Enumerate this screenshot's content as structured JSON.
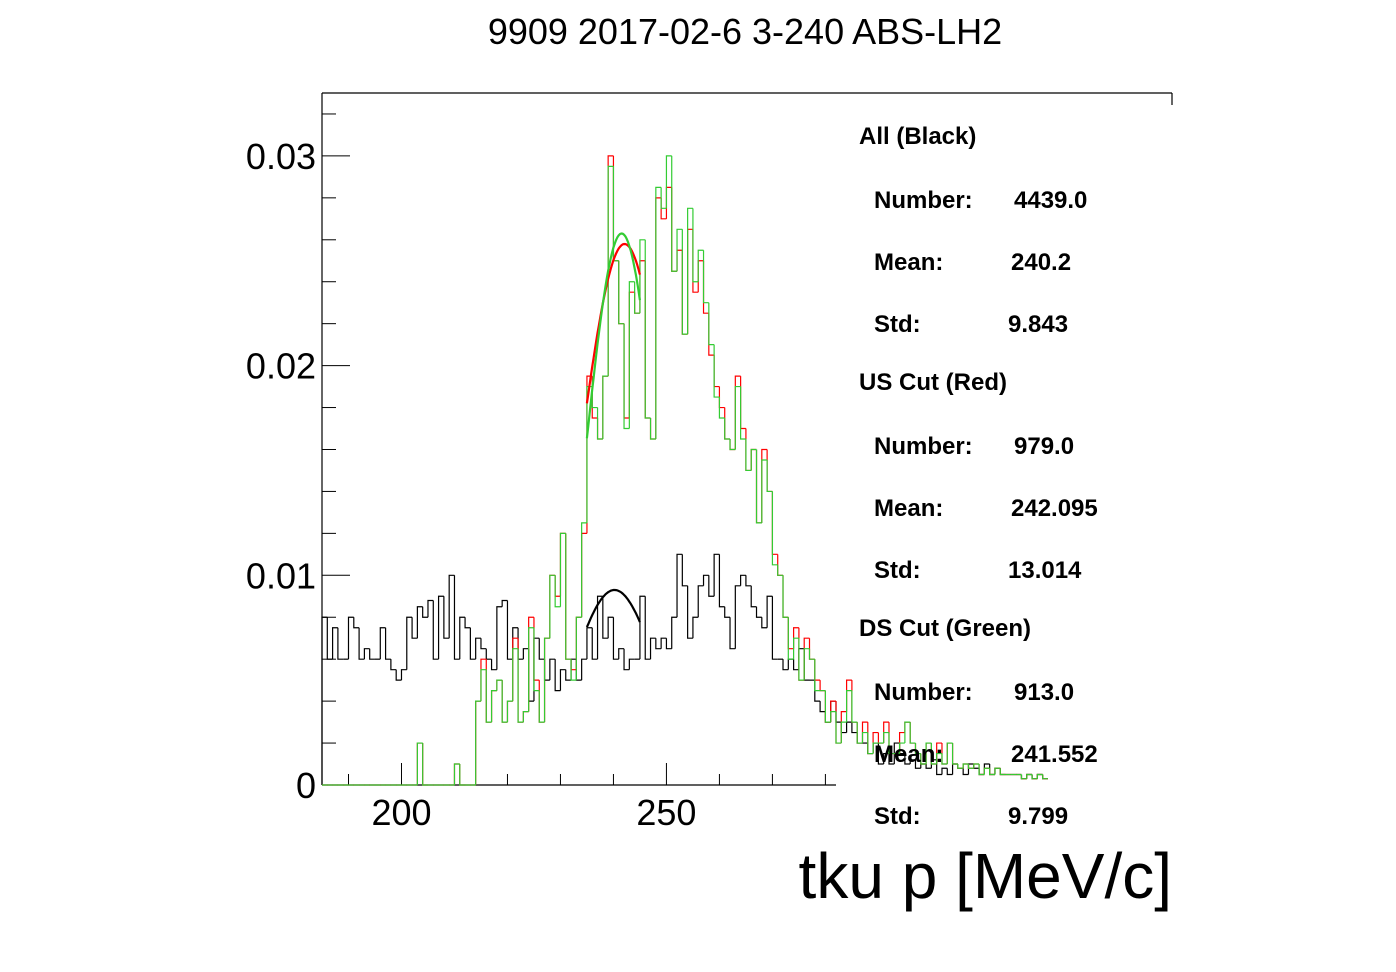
{
  "chart_data": {
    "type": "histogram",
    "title": "9909 2017-02-6 3-240 ABS-LH2",
    "xlabel": "tku p [MeV/c]",
    "ylabel": "",
    "xlim": [
      185,
      282
    ],
    "ylim": [
      0,
      0.033
    ],
    "x_ticks": [
      {
        "value": 200,
        "label": "200"
      },
      {
        "value": 250,
        "label": "250"
      }
    ],
    "y_ticks": [
      {
        "value": 0,
        "label": "0"
      },
      {
        "value": 0.01,
        "label": "0.01"
      },
      {
        "value": 0.02,
        "label": "0.02"
      },
      {
        "value": 0.03,
        "label": "0.03"
      }
    ],
    "bin_start": 185,
    "bin_width": 1,
    "series": [
      {
        "name": "All (Black)",
        "color": "#000000",
        "values": [
          0.008,
          0.006,
          0.0075,
          0.006,
          0.006,
          0.008,
          0.0075,
          0.006,
          0.0065,
          0.006,
          0.006,
          0.0075,
          0.006,
          0.0055,
          0.005,
          0.0055,
          0.008,
          0.007,
          0.0085,
          0.008,
          0.0088,
          0.006,
          0.009,
          0.007,
          0.01,
          0.006,
          0.008,
          0.0075,
          0.006,
          0.007,
          0.0065,
          0.006,
          0.0055,
          0.0085,
          0.0088,
          0.006,
          0.0075,
          0.006,
          0.0065,
          0.004,
          0.007,
          0.006,
          0.005,
          0.006,
          0.0045,
          0.0055,
          0.005,
          0.006,
          0.005,
          0.006,
          0.0075,
          0.006,
          0.009,
          0.007,
          0.008,
          0.006,
          0.0065,
          0.0055,
          0.006,
          0.006,
          0.009,
          0.006,
          0.007,
          0.0065,
          0.007,
          0.0065,
          0.008,
          0.011,
          0.0095,
          0.007,
          0.008,
          0.0095,
          0.01,
          0.009,
          0.011,
          0.0085,
          0.008,
          0.0065,
          0.0095,
          0.01,
          0.0095,
          0.0085,
          0.008,
          0.0075,
          0.009,
          0.006,
          0.006,
          0.0055,
          0.006,
          0.0055,
          0.0065,
          0.005,
          0.005,
          0.004,
          0.0035,
          0.003,
          0.004,
          0.003,
          0.0025,
          0.003,
          0.0025,
          0.002,
          0.002,
          0.0015,
          0.002,
          0.001,
          0.0015,
          0.001,
          0.002,
          0.0015,
          0.001,
          0.0012,
          0.0008,
          0.001,
          0.0008,
          0.0012,
          0.0005,
          0.0008,
          0.0005,
          0.001,
          0.0008,
          0.0005,
          0.001,
          0.0008,
          0.0005,
          0.001,
          0.0005,
          0.0008,
          0.0005,
          0.0005,
          0.0005,
          0.0005,
          0.0003,
          0.0005,
          0.0003,
          0.0005,
          0.0003
        ]
      },
      {
        "name": "US Cut (Red)",
        "color": "#ff0000",
        "values": [
          0,
          0,
          0,
          0,
          0,
          0,
          0,
          0,
          0,
          0,
          0,
          0,
          0,
          0,
          0,
          0,
          0,
          0,
          0.002,
          0,
          0,
          0,
          0,
          0,
          0,
          0.001,
          0,
          0,
          0,
          0.004,
          0.006,
          0.003,
          0.0045,
          0.005,
          0.003,
          0.004,
          0.007,
          0.003,
          0.0035,
          0.008,
          0.005,
          0.003,
          0.007,
          0.01,
          0.009,
          0.012,
          0.006,
          0.0055,
          0.008,
          0.012,
          0.0195,
          0.0175,
          0.0165,
          0.0195,
          0.03,
          0.025,
          0.022,
          0.0175,
          0.0235,
          0.0225,
          0.025,
          0.0175,
          0.0165,
          0.028,
          0.027,
          0.0285,
          0.0245,
          0.0255,
          0.0215,
          0.0265,
          0.0235,
          0.025,
          0.0225,
          0.0205,
          0.019,
          0.018,
          0.0165,
          0.016,
          0.0195,
          0.017,
          0.015,
          0.016,
          0.0125,
          0.016,
          0.014,
          0.011,
          0.01,
          0.008,
          0.0065,
          0.0075,
          0.005,
          0.007,
          0.006,
          0.005,
          0.0045,
          0.003,
          0.004,
          0.002,
          0.0035,
          0.005,
          0.003,
          0.002,
          0.003,
          0.0015,
          0.0025,
          0.002,
          0.003,
          0.0015,
          0.0015,
          0.0025,
          0.003,
          0.002,
          0.0015,
          0.001,
          0.002,
          0.001,
          0.002,
          0.001,
          0.002,
          0.001,
          0.0008,
          0.001,
          0.0008,
          0.001,
          0.0005,
          0.0008,
          0.0005,
          0.0008,
          0.0005,
          0.0005,
          0.0005,
          0.0005,
          0.0003,
          0.0005,
          0.0003,
          0.0005,
          0.0003
        ]
      },
      {
        "name": "DS Cut (Green)",
        "color": "#33cc33",
        "values": [
          0,
          0,
          0,
          0,
          0,
          0,
          0,
          0,
          0,
          0,
          0,
          0,
          0,
          0,
          0,
          0,
          0,
          0,
          0.002,
          0,
          0,
          0,
          0,
          0,
          0,
          0.001,
          0,
          0,
          0,
          0.004,
          0.0055,
          0.003,
          0.0045,
          0.005,
          0.003,
          0.004,
          0.0065,
          0.003,
          0.0035,
          0.0075,
          0.0045,
          0.003,
          0.007,
          0.01,
          0.0085,
          0.012,
          0.006,
          0.005,
          0.008,
          0.0125,
          0.019,
          0.018,
          0.0165,
          0.0195,
          0.0295,
          0.025,
          0.022,
          0.017,
          0.024,
          0.0225,
          0.026,
          0.0175,
          0.0165,
          0.0285,
          0.0275,
          0.03,
          0.0245,
          0.0265,
          0.0215,
          0.0275,
          0.024,
          0.0255,
          0.023,
          0.021,
          0.0185,
          0.0175,
          0.0165,
          0.016,
          0.019,
          0.0165,
          0.015,
          0.016,
          0.0125,
          0.0155,
          0.014,
          0.0105,
          0.01,
          0.008,
          0.006,
          0.007,
          0.005,
          0.0065,
          0.006,
          0.0045,
          0.0045,
          0.003,
          0.0035,
          0.002,
          0.003,
          0.0045,
          0.003,
          0.002,
          0.0025,
          0.0015,
          0.002,
          0.002,
          0.0025,
          0.0015,
          0.0015,
          0.002,
          0.003,
          0.002,
          0.0015,
          0.001,
          0.002,
          0.001,
          0.0015,
          0.001,
          0.002,
          0.001,
          0.0008,
          0.001,
          0.0008,
          0.001,
          0.0005,
          0.0008,
          0.0005,
          0.0008,
          0.0005,
          0.0005,
          0.0005,
          0.0005,
          0.0003,
          0.0005,
          0.0003,
          0.0005,
          0.0003
        ]
      }
    ],
    "fits": [
      {
        "series": "All (Black)",
        "color": "#000000",
        "mean": 240.2,
        "peak": 0.0093,
        "sigma": 8.0,
        "x_range": [
          235,
          245
        ]
      },
      {
        "series": "US Cut (Red)",
        "color": "#ff0000",
        "mean": 242.1,
        "peak": 0.0258,
        "sigma": 8.5,
        "x_range": [
          235,
          245
        ]
      },
      {
        "series": "DS Cut (Green)",
        "color": "#33cc33",
        "mean": 241.55,
        "peak": 0.0263,
        "sigma": 6.8,
        "x_range": [
          235,
          245
        ]
      }
    ],
    "stats": [
      {
        "heading": "All (Black)",
        "number": "4439.0",
        "mean": "240.2",
        "std": "9.843"
      },
      {
        "heading": "US Cut (Red)",
        "number": "979.0",
        "mean": "242.095",
        "std": "13.014"
      },
      {
        "heading": "DS Cut (Green)",
        "number": "913.0",
        "mean": "241.552",
        "std": "9.799"
      }
    ],
    "stat_labels": {
      "number": "Number:",
      "mean": "Mean:",
      "std": "Std:"
    }
  }
}
